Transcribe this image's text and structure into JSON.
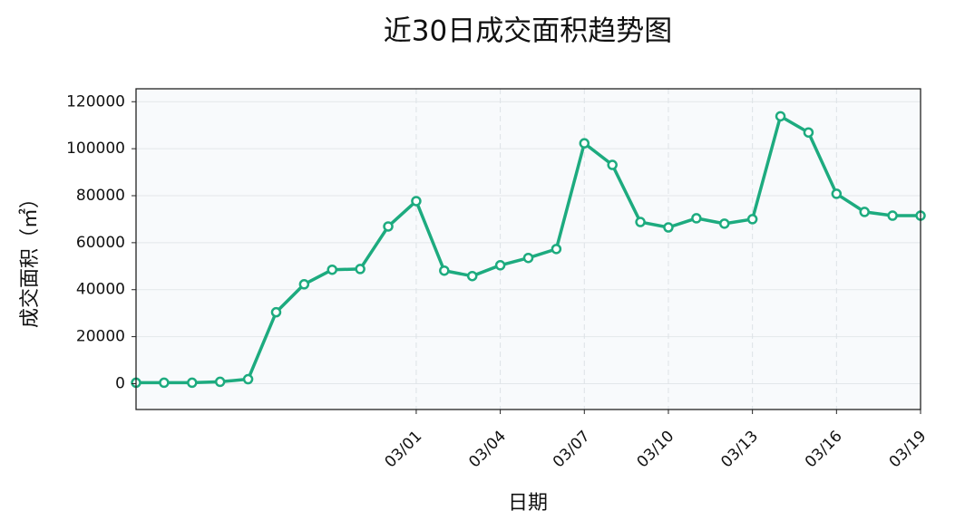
{
  "chart_data": {
    "type": "line",
    "title": "近30日成交面积趋势图",
    "x_label": "日期",
    "y_label": "成交面积（㎡）",
    "categories": [
      null,
      null,
      null,
      null,
      null,
      null,
      null,
      null,
      null,
      null,
      "03/01",
      null,
      null,
      "03/04",
      null,
      null,
      "03/07",
      null,
      null,
      "03/10",
      null,
      null,
      "03/13",
      null,
      null,
      "03/16",
      null,
      null,
      "03/19"
    ],
    "series": [
      {
        "name": "成交面积",
        "color": "#1dab7f",
        "values": [
          400,
          400,
          400,
          800,
          1900,
          30400,
          42300,
          48500,
          48800,
          66900,
          77700,
          48100,
          45800,
          50400,
          53500,
          57300,
          102300,
          93100,
          68800,
          66500,
          70400,
          68100,
          70000,
          113800,
          106900,
          80800,
          73100,
          71500,
          71500
        ]
      }
    ],
    "ylim": [
      -11000,
      125500
    ],
    "yticks": [
      0,
      20000,
      40000,
      60000,
      80000,
      100000,
      120000
    ],
    "grid": true
  }
}
